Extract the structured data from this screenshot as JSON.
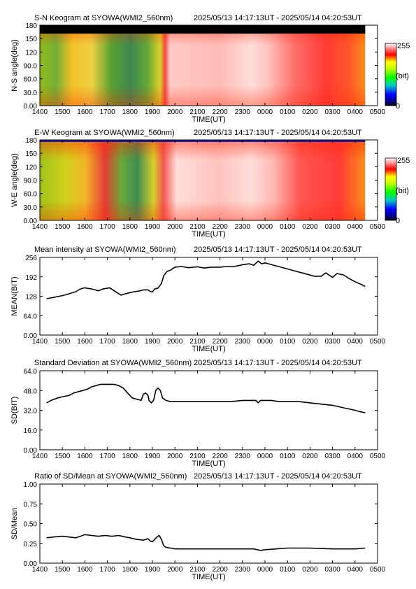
{
  "chart_data": [
    {
      "type": "heatmap",
      "title": "S-N Keogram at SYOWA(WMI2_560nm)",
      "period": "2025/05/13 14:17:13UT - 2025/05/14 04:20:53UT",
      "ylabel": "N-S angle(deg)",
      "xlabel": "TIME(UT)",
      "x_ticks": [
        "1400",
        "1500",
        "1600",
        "1700",
        "1800",
        "1900",
        "2000",
        "2100",
        "2200",
        "2300",
        "0000",
        "0100",
        "0200",
        "0300",
        "0400",
        "0500"
      ],
      "y_ticks": [
        "0.00",
        "30.0",
        "60.0",
        "90.0",
        "120",
        "150",
        "180"
      ],
      "ylim": [
        0,
        180
      ],
      "colorbar": {
        "max_label": "255",
        "unit_label": "(bit)",
        "min_label": "0"
      },
      "colors": [
        "#000080",
        "#0000ff",
        "#00c8c8",
        "#00ff00",
        "#c8ff00",
        "#ffff00",
        "#ff0000",
        "#ffffff"
      ]
    },
    {
      "type": "heatmap",
      "title": "E-W Keogram at SYOWA(WMI2_560nm)",
      "period": "2025/05/13 14:17:13UT - 2025/05/14 04:20:53UT",
      "ylabel": "W-E angle(deg)",
      "xlabel": "TIME(UT)",
      "x_ticks": [
        "1400",
        "1500",
        "1600",
        "1700",
        "1800",
        "1900",
        "2000",
        "2100",
        "2200",
        "2300",
        "0000",
        "0100",
        "0200",
        "0300",
        "0400",
        "0500"
      ],
      "y_ticks": [
        "0.00",
        "30.0",
        "60.0",
        "90.0",
        "120",
        "150",
        "180"
      ],
      "ylim": [
        0,
        180
      ],
      "colorbar": {
        "max_label": "255",
        "unit_label": "(bit)",
        "min_label": "0"
      }
    },
    {
      "type": "line",
      "title": "Mean intensity at SYOWA(WMI2_560nm)",
      "period": "2025/05/13 14:17:13UT - 2025/05/14 04:20:53UT",
      "ylabel": "MEAN(BIT)",
      "xlabel": "TIME(UT)",
      "x_ticks": [
        "1400",
        "1500",
        "1600",
        "1700",
        "1800",
        "1900",
        "2000",
        "2100",
        "2200",
        "2300",
        "0000",
        "0100",
        "0200",
        "0300",
        "0400",
        "0500"
      ],
      "y_ticks": [
        "0.00",
        "64.0",
        "128",
        "192",
        "256"
      ],
      "ylim": [
        0,
        256
      ],
      "xlim_hours": [
        14,
        29
      ],
      "x": [
        14.3,
        14.6,
        15.0,
        15.3,
        15.6,
        15.8,
        16.0,
        16.3,
        16.6,
        16.8,
        17.1,
        17.3,
        17.6,
        17.8,
        18.0,
        18.2,
        18.4,
        18.6,
        18.8,
        18.9,
        19.0,
        19.1,
        19.25,
        19.4,
        19.5,
        19.65,
        19.8,
        20.0,
        20.3,
        20.6,
        21.0,
        21.3,
        21.6,
        22.0,
        22.3,
        22.6,
        22.9,
        23.0,
        23.3,
        23.5,
        23.7,
        23.85,
        24.0,
        24.3,
        24.6,
        25.0,
        25.3,
        25.6,
        25.9,
        26.2,
        26.5,
        26.7,
        27.0,
        27.2,
        27.5,
        27.7,
        28.0,
        28.3,
        28.45
      ],
      "values": [
        120,
        124,
        130,
        136,
        143,
        152,
        156,
        152,
        146,
        152,
        156,
        146,
        132,
        136,
        140,
        143,
        145,
        149,
        149,
        144,
        142,
        152,
        155,
        170,
        195,
        210,
        214,
        224,
        226,
        222,
        225,
        221,
        224,
        224,
        226,
        226,
        230,
        232,
        235,
        230,
        244,
        235,
        238,
        232,
        226,
        218,
        212,
        206,
        200,
        194,
        194,
        205,
        190,
        203,
        198,
        188,
        176,
        166,
        160
      ]
    },
    {
      "type": "line",
      "title": "Standard Deviation at SYOWA(WMI2_560nm)",
      "period": "2025/05/13 14:17:13UT - 2025/05/14 04:20:53UT",
      "ylabel": "SD(BIT)",
      "xlabel": "TIME(UT)",
      "x_ticks": [
        "1400",
        "1500",
        "1600",
        "1700",
        "1800",
        "1900",
        "2000",
        "2100",
        "2200",
        "2300",
        "0000",
        "0100",
        "0200",
        "0300",
        "0400",
        "0500"
      ],
      "y_ticks": [
        "0.00",
        "16.0",
        "32.0",
        "48.0",
        "64.0"
      ],
      "ylim": [
        0,
        64
      ],
      "xlim_hours": [
        14,
        29
      ],
      "x": [
        14.3,
        14.5,
        14.8,
        15.0,
        15.3,
        15.5,
        15.7,
        15.9,
        16.1,
        16.3,
        16.5,
        16.7,
        17.0,
        17.3,
        17.5,
        17.7,
        17.9,
        18.1,
        18.3,
        18.5,
        18.6,
        18.7,
        18.8,
        18.85,
        18.95,
        19.05,
        19.15,
        19.25,
        19.35,
        19.45,
        19.6,
        19.8,
        20.0,
        20.3,
        20.6,
        21.0,
        21.5,
        22.0,
        22.5,
        23.0,
        23.3,
        23.6,
        23.7,
        23.8,
        24.0,
        24.3,
        24.6,
        25.0,
        25.5,
        26.0,
        26.5,
        27.0,
        27.5,
        28.0,
        28.2,
        28.45
      ],
      "values": [
        38,
        40,
        42,
        43,
        44,
        46,
        47,
        48,
        49,
        51,
        52,
        53,
        53,
        53,
        52,
        50,
        46,
        42,
        41,
        40,
        45,
        46,
        44,
        40,
        38,
        40,
        48,
        50,
        48,
        42,
        40,
        39,
        39,
        39,
        39,
        39,
        39,
        39,
        39,
        40,
        40,
        40,
        38,
        40,
        40,
        40,
        39,
        39,
        39,
        38,
        37,
        36,
        34,
        32,
        31,
        30
      ]
    },
    {
      "type": "line",
      "title": "Ratio of SD/Mean at SYOWA(WMI2_560nm)",
      "period": "2025/05/13 14:17:13UT - 2025/05/14 04:20:53UT",
      "ylabel": "SD/Mean",
      "xlabel": "TIME(UT)",
      "x_ticks": [
        "1400",
        "1500",
        "1600",
        "1700",
        "1800",
        "1900",
        "2000",
        "2100",
        "2200",
        "2300",
        "0000",
        "0100",
        "0200",
        "0300",
        "0400",
        "0500"
      ],
      "y_ticks": [
        "0.00",
        "0.25",
        "0.50",
        "0.75",
        "1.00"
      ],
      "ylim": [
        0,
        1
      ],
      "xlim_hours": [
        14,
        29
      ],
      "x": [
        14.3,
        14.6,
        15.0,
        15.3,
        15.6,
        15.8,
        16.0,
        16.3,
        16.6,
        16.9,
        17.2,
        17.5,
        17.8,
        18.0,
        18.3,
        18.6,
        18.8,
        18.9,
        19.0,
        19.1,
        19.2,
        19.3,
        19.4,
        19.5,
        19.6,
        19.8,
        20.0,
        20.5,
        21.0,
        22.0,
        23.0,
        23.5,
        23.8,
        24.0,
        24.5,
        25.0,
        26.0,
        27.0,
        28.0,
        28.45
      ],
      "values": [
        0.32,
        0.33,
        0.34,
        0.33,
        0.32,
        0.34,
        0.36,
        0.35,
        0.34,
        0.35,
        0.34,
        0.35,
        0.33,
        0.32,
        0.3,
        0.29,
        0.31,
        0.28,
        0.27,
        0.3,
        0.33,
        0.35,
        0.3,
        0.22,
        0.2,
        0.19,
        0.18,
        0.18,
        0.18,
        0.18,
        0.18,
        0.18,
        0.16,
        0.17,
        0.18,
        0.19,
        0.19,
        0.18,
        0.18,
        0.19
      ]
    }
  ]
}
